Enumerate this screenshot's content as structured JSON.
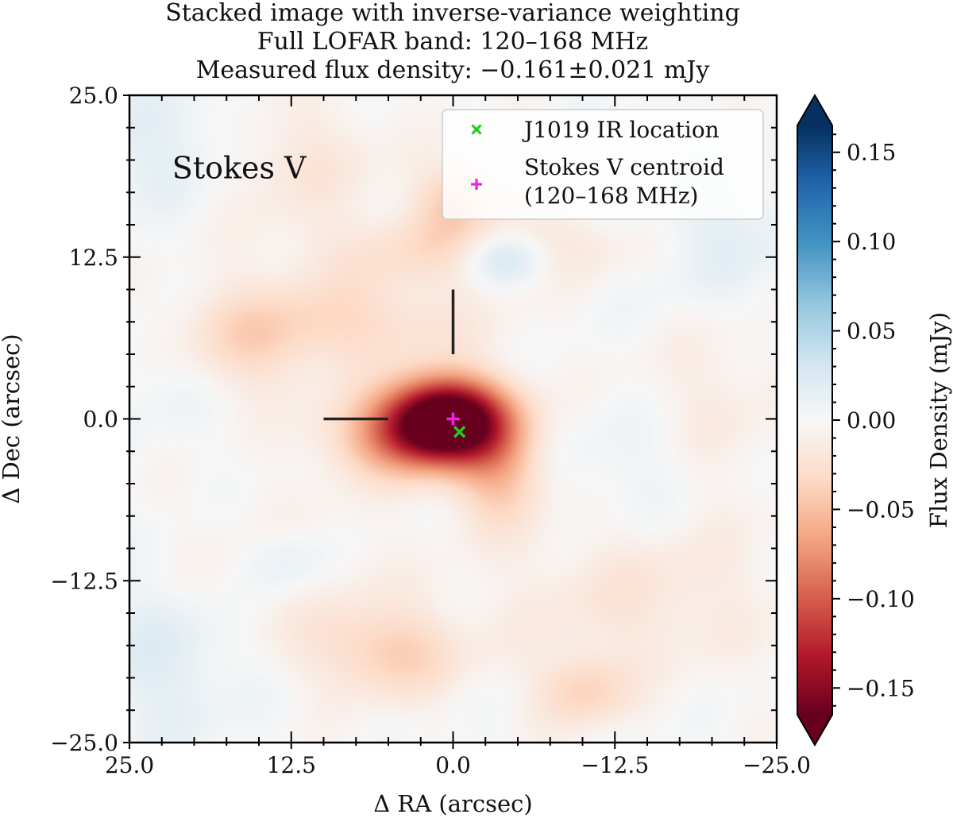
{
  "chart_data": {
    "type": "heatmap",
    "title": [
      "Stacked image with inverse-variance weighting",
      "Full LOFAR band: 120–168 MHz",
      "Measured flux density: −0.161±0.021 mJy"
    ],
    "xlabel": "Δ RA (arcsec)",
    "ylabel": "Δ Dec (arcsec)",
    "xlim": [
      25.0,
      -25.0
    ],
    "ylim": [
      -25.0,
      25.0
    ],
    "xticks": [
      25.0,
      12.5,
      0.0,
      -12.5,
      -25.0
    ],
    "xtick_labels": [
      "25.0",
      "12.5",
      "0.0",
      "−12.5",
      "−25.0"
    ],
    "yticks": [
      25.0,
      12.5,
      0.0,
      -12.5,
      -25.0
    ],
    "ytick_labels": [
      "25.0",
      "12.5",
      "0.0",
      "−12.5",
      "−25.0"
    ],
    "annotation": "Stokes V",
    "colorbar": {
      "label": "Flux Density (mJy)",
      "colormap": "RdBu",
      "range": [
        -0.165,
        0.165
      ],
      "ticks": [
        0.15,
        0.1,
        0.05,
        0.0,
        -0.05,
        -0.1,
        -0.15
      ],
      "tick_labels": [
        "0.15",
        "0.10",
        "0.05",
        "0.00",
        "−0.05",
        "−0.10",
        "−0.15"
      ],
      "extend": "both"
    },
    "legend": {
      "placement": "top-right",
      "entries": [
        {
          "label": "J1019 IR location",
          "marker": "x",
          "color": "#22cc22"
        },
        {
          "label": "Stokes V centroid (120–168 MHz)",
          "label_lines": [
            "Stokes V centroid",
            "(120–168 MHz)"
          ],
          "marker": "+",
          "color": "#ee22ee"
        }
      ]
    },
    "markers": [
      {
        "name": "J1019 IR location",
        "x": -0.5,
        "y": -1.0,
        "marker": "x",
        "color": "#22cc22"
      },
      {
        "name": "Stokes V centroid",
        "x": 0.0,
        "y": 0.0,
        "marker": "+",
        "color": "#ee22ee"
      }
    ],
    "crosshair_lines": [
      {
        "x": [
          10.0,
          5.0
        ],
        "y": [
          0.0,
          0.0
        ]
      },
      {
        "x": [
          0.0,
          0.0
        ],
        "y": [
          5.0,
          10.0
        ]
      }
    ],
    "image_blobs": [
      {
        "x": 0.5,
        "y": 0.0,
        "sx": 3.2,
        "sy": 2.2,
        "v": -0.2
      },
      {
        "x": 4.0,
        "y": -1.5,
        "sx": 4.0,
        "sy": 2.2,
        "v": -0.06
      },
      {
        "x": -3.5,
        "y": -4.0,
        "sx": 2.5,
        "sy": 3.0,
        "v": -0.05
      },
      {
        "x": 0.0,
        "y": 17.0,
        "sx": 2.2,
        "sy": 2.0,
        "v": -0.035
      },
      {
        "x": 13.0,
        "y": 20.0,
        "sx": 5.0,
        "sy": 3.5,
        "v": -0.025
      },
      {
        "x": 2.0,
        "y": 13.0,
        "sx": 7.0,
        "sy": 2.0,
        "v": -0.02
      },
      {
        "x": -7.0,
        "y": 13.5,
        "sx": 7.0,
        "sy": 2.0,
        "v": -0.018
      },
      {
        "x": 7.0,
        "y": 7.5,
        "sx": 6.0,
        "sy": 2.5,
        "v": -0.03
      },
      {
        "x": 16.0,
        "y": 6.0,
        "sx": 4.0,
        "sy": 3.0,
        "v": -0.03
      },
      {
        "x": 5.0,
        "y": -18.0,
        "sx": 4.0,
        "sy": 2.5,
        "v": -0.04
      },
      {
        "x": 14.0,
        "y": -12.0,
        "sx": 6.0,
        "sy": 4.0,
        "v": -0.015
      },
      {
        "x": -10.0,
        "y": -21.0,
        "sx": 2.5,
        "sy": 2.0,
        "v": -0.035
      },
      {
        "x": -14.0,
        "y": -14.0,
        "sx": 7.0,
        "sy": 4.0,
        "v": -0.02
      },
      {
        "x": -20.0,
        "y": 0.0,
        "sx": 4.0,
        "sy": 6.0,
        "v": -0.015
      },
      {
        "x": -4.0,
        "y": 12.5,
        "sx": 2.5,
        "sy": 1.5,
        "v": 0.045
      },
      {
        "x": 21.0,
        "y": 21.0,
        "sx": 6.0,
        "sy": 3.5,
        "v": 0.02
      },
      {
        "x": -20.0,
        "y": 14.0,
        "sx": 5.0,
        "sy": 4.0,
        "v": 0.018
      },
      {
        "x": 13.0,
        "y": -11.0,
        "sx": 2.5,
        "sy": 2.0,
        "v": 0.025
      },
      {
        "x": 22.0,
        "y": -18.0,
        "sx": 4.0,
        "sy": 5.0,
        "v": 0.02
      },
      {
        "x": -15.0,
        "y": -4.0,
        "sx": 5.0,
        "sy": 3.5,
        "v": 0.012
      },
      {
        "x": 22.0,
        "y": 3.0,
        "sx": 3.0,
        "sy": 3.0,
        "v": 0.01
      }
    ]
  }
}
